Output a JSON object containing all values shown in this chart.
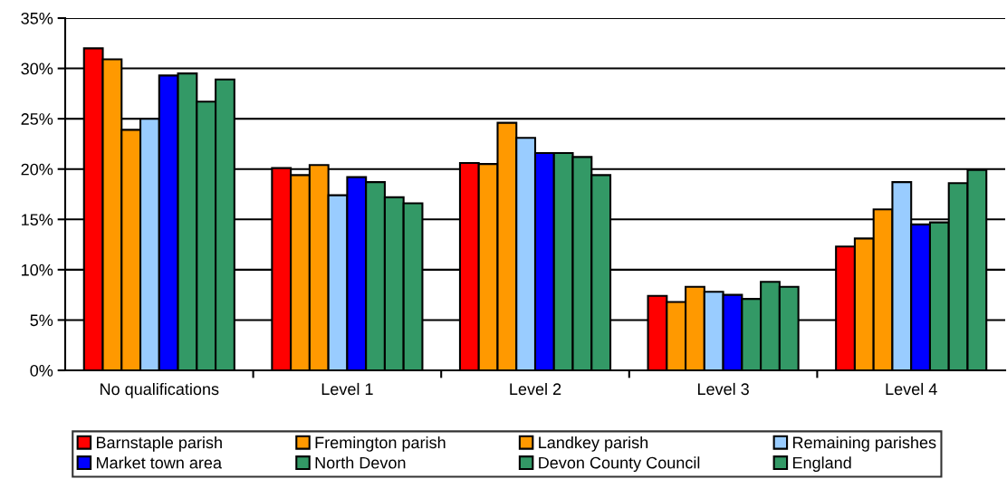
{
  "chart_data": {
    "type": "bar",
    "categories": [
      "No qualifications",
      "Level 1",
      "Level 2",
      "Level 3",
      "Level 4"
    ],
    "series": [
      {
        "name": "Barnstaple parish",
        "color": "#ff0000",
        "values": [
          32.0,
          20.1,
          20.6,
          7.4,
          12.3
        ]
      },
      {
        "name": "Fremington parish",
        "color": "#ff9900",
        "values": [
          30.9,
          19.4,
          20.5,
          6.8,
          13.1
        ]
      },
      {
        "name": "Landkey parish",
        "color": "#ff9900",
        "values": [
          23.9,
          20.4,
          24.6,
          8.3,
          16.0
        ]
      },
      {
        "name": "Remaining parishes",
        "color": "#99ccff",
        "values": [
          25.0,
          17.4,
          23.1,
          7.8,
          18.7
        ]
      },
      {
        "name": "Market town area",
        "color": "#0000ff",
        "values": [
          29.3,
          19.2,
          21.6,
          7.5,
          14.5
        ]
      },
      {
        "name": "North Devon",
        "color": "#339966",
        "values": [
          29.5,
          18.7,
          21.6,
          7.1,
          14.7
        ]
      },
      {
        "name": "Devon County Council",
        "color": "#339966",
        "values": [
          26.7,
          17.2,
          21.2,
          8.8,
          18.6
        ]
      },
      {
        "name": "England",
        "color": "#339966",
        "values": [
          28.9,
          16.6,
          19.4,
          8.3,
          19.9
        ]
      }
    ],
    "ylim": [
      0,
      35
    ],
    "yticks": [
      {
        "value": 0,
        "label": "0%"
      },
      {
        "value": 5,
        "label": "5%"
      },
      {
        "value": 10,
        "label": "10%"
      },
      {
        "value": 15,
        "label": "15%"
      },
      {
        "value": 20,
        "label": "20%"
      },
      {
        "value": 25,
        "label": "25%"
      },
      {
        "value": 30,
        "label": "30%"
      },
      {
        "value": 35,
        "label": "35%"
      }
    ],
    "grid": "y",
    "legend": "bottom"
  }
}
